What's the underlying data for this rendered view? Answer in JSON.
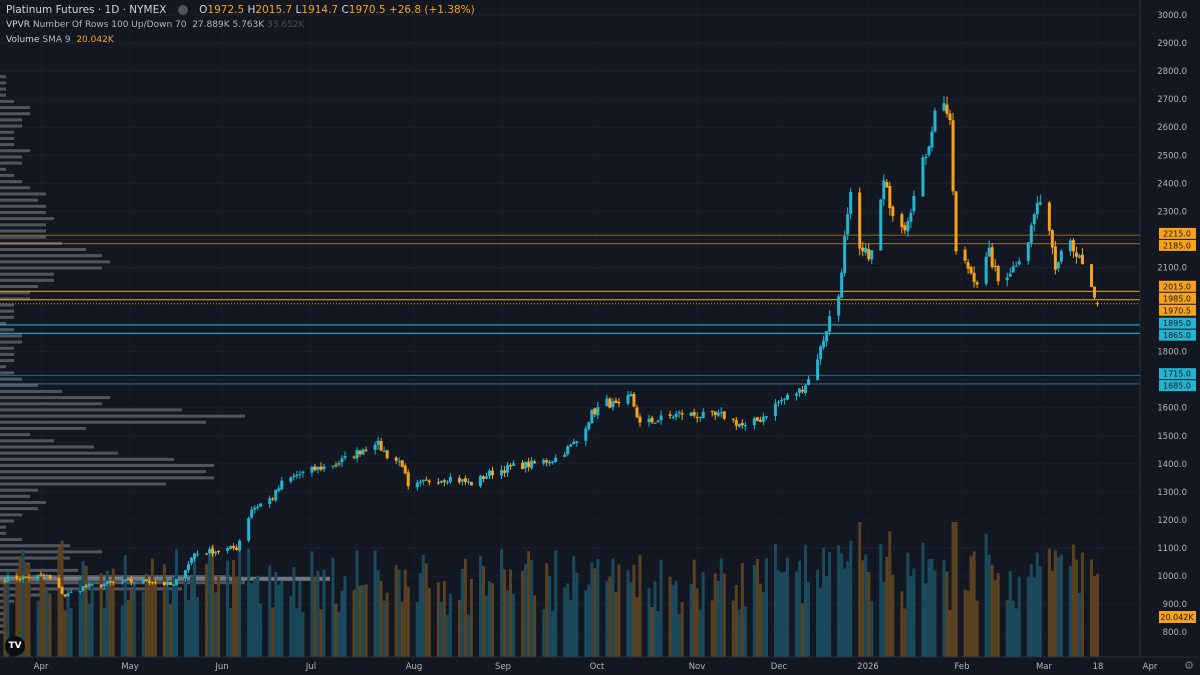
{
  "header": {
    "symbol": "Platinum Futures · 1D · NYMEX",
    "o_label": "O",
    "o": "1972.5",
    "h_label": "H",
    "h": "2015.7",
    "l_label": "L",
    "l": "1914.7",
    "c_label": "C",
    "c": "1970.5",
    "change": "+26.8 (+1.38%)"
  },
  "vpvr": {
    "name": "VPVR",
    "params": "Number Of Rows 100 Up/Down 70",
    "up": "27.889K",
    "down": "5.763K",
    "total": "33.652K"
  },
  "volume": {
    "name": "Volume",
    "params": "SMA 9",
    "value": "20.042K"
  },
  "logo": "TV",
  "colors": {
    "up": "#22b5d0",
    "down": "#f7a21b",
    "bg": "#131722",
    "up_vol": "#1b4a5c",
    "down_vol": "#5a4220"
  },
  "chart_data": {
    "type": "candlestick",
    "ylim": [
      800,
      3000
    ],
    "y_ticks": [
      800,
      900,
      1000,
      1100,
      1200,
      1300,
      1400,
      1500,
      1600,
      1800,
      2100,
      2300,
      2400,
      2500,
      2600,
      2700,
      2800,
      2900,
      3000
    ],
    "x_ticks": [
      "Apr",
      "May",
      "Jun",
      "Jul",
      "Aug",
      "Sep",
      "Oct",
      "Nov",
      "Dec",
      "2026",
      "Feb",
      "Mar",
      "18",
      "Apr"
    ],
    "approx_closes": [
      [
        "2025-03-20",
        990
      ],
      [
        "2025-04-03",
        1000
      ],
      [
        "2025-04-09",
        930
      ],
      [
        "2025-04-15",
        960
      ],
      [
        "2025-04-25",
        975
      ],
      [
        "2025-05-06",
        985
      ],
      [
        "2025-05-15",
        965
      ],
      [
        "2025-05-22",
        1080
      ],
      [
        "2025-06-05",
        1100
      ],
      [
        "2025-06-10",
        1240
      ],
      [
        "2025-06-17",
        1280
      ],
      [
        "2025-06-20",
        1330
      ],
      [
        "2025-06-25",
        1360
      ],
      [
        "2025-07-01",
        1380
      ],
      [
        "2025-07-08",
        1400
      ],
      [
        "2025-07-15",
        1440
      ],
      [
        "2025-07-21",
        1480
      ],
      [
        "2025-07-25",
        1430
      ],
      [
        "2025-07-30",
        1400
      ],
      [
        "2025-08-01",
        1310
      ],
      [
        "2025-08-08",
        1340
      ],
      [
        "2025-08-15",
        1350
      ],
      [
        "2025-08-22",
        1330
      ],
      [
        "2025-08-29",
        1370
      ],
      [
        "2025-09-05",
        1390
      ],
      [
        "2025-09-12",
        1400
      ],
      [
        "2025-09-19",
        1420
      ],
      [
        "2025-09-26",
        1480
      ],
      [
        "2025-10-01",
        1580
      ],
      [
        "2025-10-06",
        1620
      ],
      [
        "2025-10-10",
        1600
      ],
      [
        "2025-10-14",
        1640
      ],
      [
        "2025-10-17",
        1540
      ],
      [
        "2025-10-24",
        1560
      ],
      [
        "2025-10-31",
        1580
      ],
      [
        "2025-11-07",
        1570
      ],
      [
        "2025-11-14",
        1570
      ],
      [
        "2025-11-21",
        1530
      ],
      [
        "2025-11-26",
        1560
      ],
      [
        "2025-12-02",
        1620
      ],
      [
        "2025-12-09",
        1660
      ],
      [
        "2025-12-12",
        1700
      ],
      [
        "2025-12-16",
        1810
      ],
      [
        "2025-12-19",
        1920
      ],
      [
        "2025-12-22",
        2000
      ],
      [
        "2025-12-24",
        2200
      ],
      [
        "2025-12-26",
        2350
      ],
      [
        "2025-12-29",
        2150
      ],
      [
        "2026-01-02",
        2150
      ],
      [
        "2026-01-06",
        2400
      ],
      [
        "2026-01-09",
        2300
      ],
      [
        "2026-01-13",
        2250
      ],
      [
        "2026-01-16",
        2350
      ],
      [
        "2026-01-21",
        2550
      ],
      [
        "2026-01-23",
        2650
      ],
      [
        "2026-01-26",
        2700
      ],
      [
        "2026-01-28",
        2600
      ],
      [
        "2026-01-30",
        2150
      ],
      [
        "2026-02-03",
        2100
      ],
      [
        "2026-02-06",
        2050
      ],
      [
        "2026-02-10",
        2150
      ],
      [
        "2026-02-13",
        2050
      ],
      [
        "2026-02-18",
        2100
      ],
      [
        "2026-02-23",
        2200
      ],
      [
        "2026-02-26",
        2330
      ],
      [
        "2026-03-02",
        2250
      ],
      [
        "2026-03-04",
        2100
      ],
      [
        "2026-03-06",
        2180
      ],
      [
        "2026-03-09",
        2200
      ],
      [
        "2026-03-11",
        2150
      ],
      [
        "2026-03-13",
        2100
      ],
      [
        "2026-03-16",
        2020
      ],
      [
        "2026-03-18",
        1970.5
      ]
    ],
    "price_lines": [
      {
        "label": "2215.0",
        "value": 2215,
        "color": "#f7a21b"
      },
      {
        "label": "2185.0",
        "value": 2185,
        "color": "#f7a21b"
      },
      {
        "label": "2015.0",
        "value": 2015,
        "color": "#f7a21b"
      },
      {
        "label": "1985.0",
        "value": 1985,
        "color": "#f7a21b"
      },
      {
        "label": "1970.5",
        "value": 1970.5,
        "color": "#f7a21b",
        "dotted": true
      },
      {
        "label": "1895.0",
        "value": 1895,
        "color": "#22b5d0"
      },
      {
        "label": "1865.0",
        "value": 1865,
        "color": "#22b5d0"
      },
      {
        "label": "1715.0",
        "value": 1715,
        "color": "#22b5d0"
      },
      {
        "label": "1685.0",
        "value": 1685,
        "color": "#22b5d0"
      }
    ]
  }
}
